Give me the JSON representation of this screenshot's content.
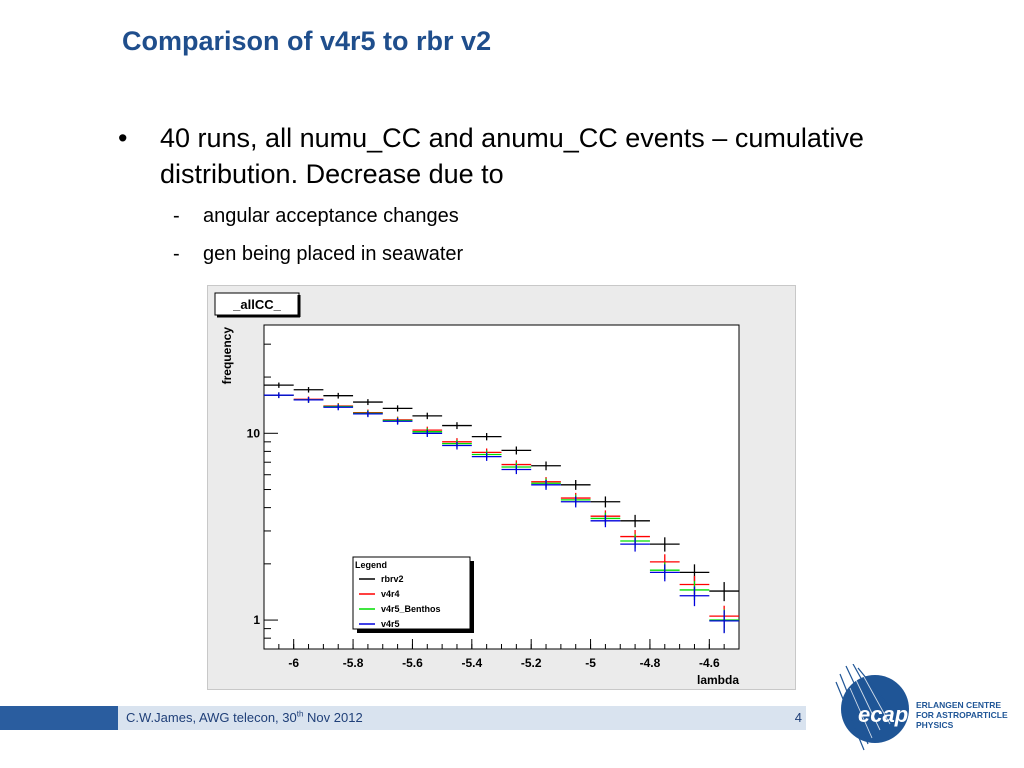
{
  "slide": {
    "title": "Comparison of v4r5 to rbr v2",
    "bullet": "40 runs, all numu_CC and anumu_CC events – cumulative distribution. Decrease due to",
    "bullet_marker": "•",
    "sub_marker": "-",
    "sub_bullets": [
      "angular acceptance changes",
      "gen being placed in seawater"
    ]
  },
  "footer": {
    "author_prefix": "C.W.James, AWG telecon, 30",
    "author_sup": "th",
    "author_suffix": " Nov 2012",
    "page_number": "4"
  },
  "logo": {
    "text": "ecap",
    "lines": [
      "ERLANGEN CENTRE",
      "FOR ASTROPARTICLE",
      "PHYSICS"
    ]
  },
  "chart_data": {
    "type": "scatter",
    "title": "_allCC_",
    "xlabel": "lambda",
    "ylabel": "frequency",
    "xlim": [
      -6.1,
      -4.5
    ],
    "ylim": [
      0.7,
      38
    ],
    "yscale": "log",
    "xticks": [
      "-6",
      "-5.8",
      "-5.6",
      "-5.4",
      "-5.2",
      "-5",
      "-4.8",
      "-4.6"
    ],
    "yticks": [
      "1",
      "10"
    ],
    "bin_width": 0.1,
    "x": [
      -6.05,
      -5.95,
      -5.85,
      -5.75,
      -5.65,
      -5.55,
      -5.45,
      -5.35,
      -5.25,
      -5.15,
      -5.05,
      -4.95,
      -4.85,
      -4.75,
      -4.65,
      -4.55
    ],
    "series": [
      {
        "name": "rbrv2",
        "color": "#000000",
        "values": [
          18.1,
          17.1,
          15.9,
          14.7,
          13.6,
          12.4,
          11.0,
          9.6,
          8.1,
          6.7,
          5.3,
          4.3,
          3.4,
          2.55,
          1.8,
          1.43
        ]
      },
      {
        "name": "v4r4",
        "color": "#ff0000",
        "values": [
          16.0,
          15.2,
          14.0,
          12.9,
          11.8,
          10.4,
          9.0,
          7.9,
          6.8,
          5.5,
          4.5,
          3.6,
          2.8,
          2.05,
          1.55,
          1.05
        ]
      },
      {
        "name": "v4r5_Benthos",
        "color": "#00dd00",
        "values": [
          16.0,
          15.1,
          13.9,
          12.8,
          11.7,
          10.2,
          8.8,
          7.7,
          6.6,
          5.4,
          4.4,
          3.5,
          2.65,
          1.85,
          1.45,
          1.0
        ]
      },
      {
        "name": "v4r5",
        "color": "#0000dd",
        "values": [
          16.0,
          15.1,
          13.8,
          12.7,
          11.6,
          10.0,
          8.6,
          7.5,
          6.4,
          5.3,
          4.3,
          3.4,
          2.55,
          1.8,
          1.35,
          0.99
        ]
      }
    ],
    "legend": {
      "title": "Legend",
      "placement": "bottom-center"
    }
  }
}
